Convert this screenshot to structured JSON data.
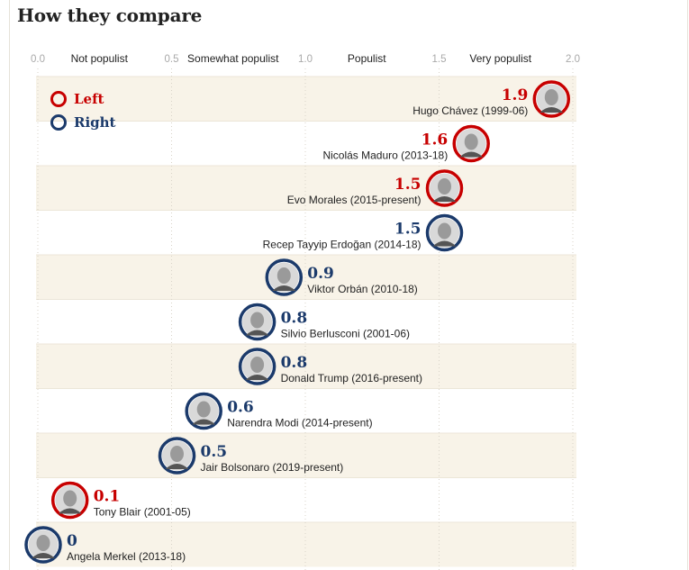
{
  "title": "How they compare",
  "colors": {
    "left": "#c70000",
    "right": "#1b3a6b",
    "band": "#f8f3e8"
  },
  "chart_data": {
    "type": "scatter",
    "title": "How they compare",
    "xlim": [
      0,
      2
    ],
    "ticks": [
      {
        "value": 0,
        "label": "0.0"
      },
      {
        "value": 0.5,
        "label": "0.5"
      },
      {
        "value": 1,
        "label": "1.0"
      },
      {
        "value": 1.5,
        "label": "1.5"
      },
      {
        "value": 2,
        "label": "2.0"
      }
    ],
    "zones": [
      {
        "label": "Not populist",
        "center": 0.25
      },
      {
        "label": "Somewhat populist",
        "center": 0.75
      },
      {
        "label": "Populist",
        "center": 1.25
      },
      {
        "label": "Very populist",
        "center": 1.75
      }
    ],
    "legend": [
      {
        "label": "Left",
        "side": "left"
      },
      {
        "label": "Right",
        "side": "right"
      }
    ],
    "points": [
      {
        "name": "Hugo Chávez (1999-06)",
        "display": "1.9",
        "value": 1.9,
        "side": "left"
      },
      {
        "name": "Nicolás Maduro (2013-18)",
        "display": "1.6",
        "value": 1.6,
        "side": "left"
      },
      {
        "name": "Evo Morales (2015-present)",
        "display": "1.5",
        "value": 1.5,
        "side": "left"
      },
      {
        "name": "Recep Tayyip Erdoğan (2014-18)",
        "display": "1.5",
        "value": 1.5,
        "side": "right"
      },
      {
        "name": "Viktor Orbán (2010-18)",
        "display": "0.9",
        "value": 0.9,
        "side": "right"
      },
      {
        "name": "Silvio Berlusconi (2001-06)",
        "display": "0.8",
        "value": 0.8,
        "side": "right"
      },
      {
        "name": "Donald Trump (2016-present)",
        "display": "0.8",
        "value": 0.8,
        "side": "right"
      },
      {
        "name": "Narendra Modi (2014-present)",
        "display": "0.6",
        "value": 0.6,
        "side": "right"
      },
      {
        "name": "Jair Bolsonaro (2019-present)",
        "display": "0.5",
        "value": 0.5,
        "side": "right"
      },
      {
        "name": "Tony Blair (2001-05)",
        "display": "0.1",
        "value": 0.1,
        "side": "left"
      },
      {
        "name": "Angela Merkel (2013-18)",
        "display": "0",
        "value": 0,
        "side": "right"
      }
    ]
  }
}
